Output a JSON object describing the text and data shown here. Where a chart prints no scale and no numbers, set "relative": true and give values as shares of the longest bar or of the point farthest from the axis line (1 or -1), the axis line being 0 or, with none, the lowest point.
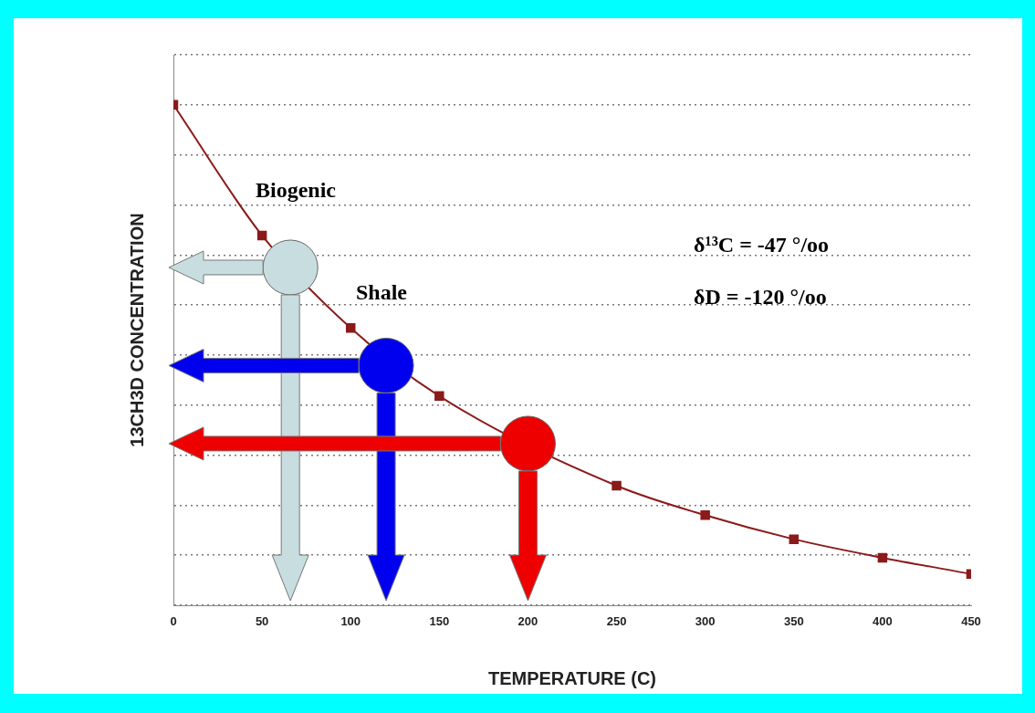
{
  "chart_data": {
    "type": "line",
    "xlabel": "TEMPERATURE (C)",
    "ylabel": "13CH3D CONCENTRATION",
    "relative": true,
    "x": [
      0,
      50,
      100,
      150,
      200,
      250,
      300,
      350,
      400,
      450
    ],
    "xlim": [
      0,
      450
    ],
    "xticks": [
      0,
      50,
      100,
      150,
      200,
      250,
      300,
      350,
      400,
      450
    ],
    "series": [
      {
        "color": "#8b1a1a",
        "marker": "square",
        "values": [
          1,
          0.739,
          0.554,
          0.418,
          null,
          0.239,
          0.18,
          0.132,
          0.095,
          0.0625
        ]
      },
      {
        "type": "scatter",
        "marker": "circle",
        "x": [
          66,
          120,
          200
        ],
        "values": [
          0.675,
          0.479,
          0.323
        ],
        "colors": [
          "#c8dde0",
          "#0000ee",
          "#ee0000"
        ]
      }
    ],
    "annotations": [
      "Biogenic",
      "Shale",
      "δ¹³C = -47 °/oo",
      "δD = -120 °/oo"
    ],
    "grid": "y",
    "line_style": "solid",
    "legend": false
  }
}
